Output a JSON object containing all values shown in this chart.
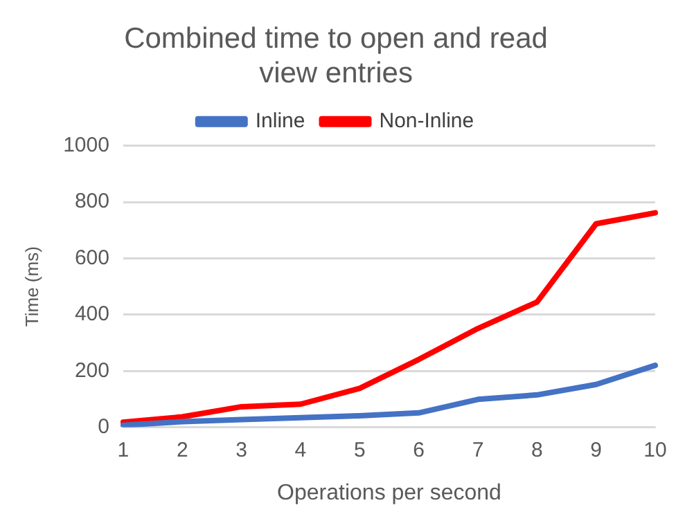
{
  "chart_data": {
    "type": "line",
    "title": [
      "Combined time to open and read",
      "view entries"
    ],
    "xlabel": "Operations per second",
    "ylabel": "Time (ms)",
    "categories": [
      "1",
      "2",
      "3",
      "4",
      "5",
      "6",
      "7",
      "8",
      "9",
      "10"
    ],
    "series": [
      {
        "name": "Inline",
        "color": "#4472c4",
        "values": [
          7,
          20,
          27,
          34,
          41,
          51,
          99,
          115,
          152,
          220
        ]
      },
      {
        "name": "Non-Inline",
        "color": "#ff0000",
        "values": [
          18,
          37,
          73,
          82,
          138,
          241,
          351,
          445,
          723,
          762
        ]
      }
    ],
    "ylim": [
      0,
      1000
    ],
    "yticks": [
      0,
      200,
      400,
      600,
      800,
      1000
    ],
    "grid": "y",
    "legend": "top",
    "marker": "none",
    "line_style": "solid"
  }
}
